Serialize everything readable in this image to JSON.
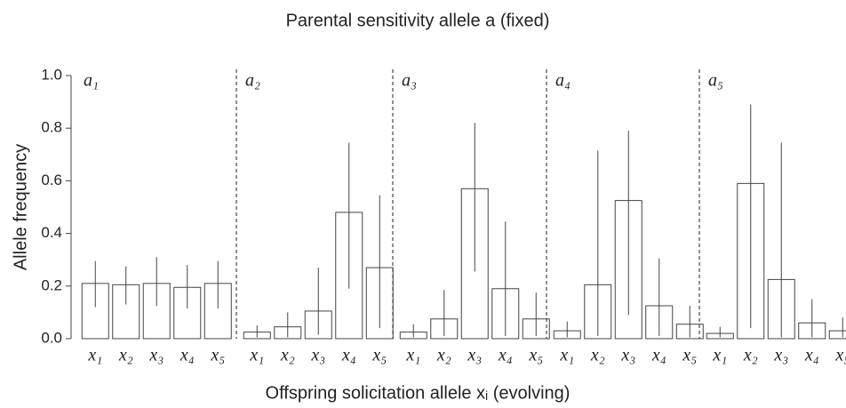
{
  "chart_data": {
    "type": "grouped-bar-error",
    "title": "Parental sensitivity allele a (fixed)",
    "x_label": "Offspring solicitation allele xᵢ (evolving)",
    "y_label": "Allele frequency",
    "ylim": [
      0,
      1
    ],
    "yticks": [
      {
        "value": 0,
        "label": "0.0"
      },
      0.2,
      0.4,
      0.6,
      0.8,
      {
        "value": 1,
        "label": "1.0"
      }
    ],
    "bar_color": "#ffffff",
    "edge_color": "#444444",
    "categories": [
      "x₁",
      "x₂",
      "x₃",
      "x₄",
      "x₅"
    ],
    "groups": [
      {
        "name": "a₁",
        "values": [
          0.21,
          0.205,
          0.21,
          0.195,
          0.21
        ],
        "lower": [
          0.12,
          0.13,
          0.125,
          0.115,
          0.115
        ],
        "upper": [
          0.295,
          0.275,
          0.31,
          0.28,
          0.295
        ]
      },
      {
        "name": "a₂",
        "values": [
          0.025,
          0.045,
          0.105,
          0.48,
          0.27
        ],
        "lower": [
          0.005,
          0.005,
          0.015,
          0.19,
          0.04
        ],
        "upper": [
          0.05,
          0.1,
          0.27,
          0.745,
          0.545
        ]
      },
      {
        "name": "a₃",
        "values": [
          0.025,
          0.075,
          0.57,
          0.19,
          0.075
        ],
        "lower": [
          0.005,
          0.01,
          0.255,
          0.01,
          0.01
        ],
        "upper": [
          0.055,
          0.185,
          0.82,
          0.445,
          0.175
        ]
      },
      {
        "name": "a₄",
        "values": [
          0.03,
          0.205,
          0.525,
          0.125,
          0.055
        ],
        "lower": [
          0.005,
          0.01,
          0.09,
          0.01,
          0.005
        ],
        "upper": [
          0.065,
          0.715,
          0.79,
          0.305,
          0.125
        ]
      },
      {
        "name": "a₅",
        "values": [
          0.02,
          0.59,
          0.225,
          0.06,
          0.03
        ],
        "lower": [
          0.005,
          0.04,
          0.005,
          0.005,
          0.005
        ],
        "upper": [
          0.045,
          0.89,
          0.745,
          0.15,
          0.08
        ]
      }
    ]
  }
}
